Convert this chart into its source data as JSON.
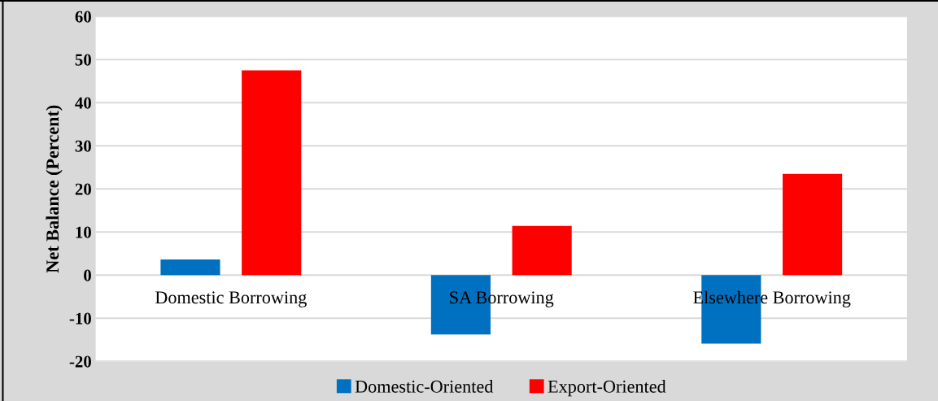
{
  "chart_data": {
    "type": "bar",
    "ylabel": "Net Balance (Percent)",
    "categories": [
      "Domestic Borrowing",
      "SA Borrowing",
      "Elsewhere Borrowing"
    ],
    "series": [
      {
        "name": "Domestic-Oriented",
        "color": "#0070c0",
        "values": [
          3.6,
          -13.8,
          -15.9
        ]
      },
      {
        "name": "Export-Oriented",
        "color": "#ff0000",
        "values": [
          47.5,
          11.4,
          23.5
        ]
      }
    ],
    "ylim": [
      -20,
      60
    ],
    "yticks": [
      {
        "value": -20,
        "label": "-20"
      },
      {
        "value": -10,
        "label": "-10"
      },
      0,
      10,
      20,
      30,
      40,
      50,
      60
    ],
    "grid": "y",
    "legend": "bottom"
  }
}
